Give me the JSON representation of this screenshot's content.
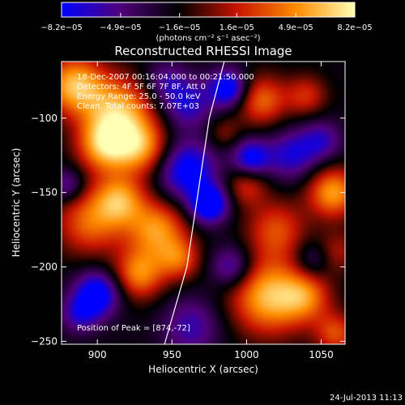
{
  "chart_data": {
    "type": "heatmap",
    "title": "Reconstructed RHESSI Image",
    "xlabel": "Heliocentric X (arcsec)",
    "ylabel": "Heliocentric Y (arcsec)",
    "xlim": [
      876,
      1066
    ],
    "ylim": [
      -252,
      -62
    ],
    "x_ticks": [
      900,
      950,
      1000,
      1050
    ],
    "y_ticks": [
      -250,
      -200,
      -150,
      -100
    ],
    "x_tick_labels": [
      "900",
      "950",
      "1000",
      "1050"
    ],
    "y_tick_labels": [
      "−250",
      "−200",
      "−150",
      "−100"
    ],
    "colorbar": {
      "min": -8.2e-05,
      "max": 8.2e-05,
      "tick_labels": [
        "−8.2e−05",
        "−4.9e−05",
        "−1.6e−05",
        "1.6e−05",
        "4.9e−05",
        "8.2e−05"
      ],
      "tick_values": [
        -8.2e-05,
        -4.9e-05,
        -1.6e-05,
        1.6e-05,
        4.9e-05,
        8.2e-05
      ],
      "unit_label": "(photons cm⁻² s⁻¹ asec⁻²)",
      "colormap": [
        "#0000ff",
        "#50007a",
        "#000000",
        "#c81400",
        "#ff8c00",
        "#ffffb4"
      ]
    },
    "annotations": [
      "18-Dec-2007 00:16:04.000 to 00:21:50.000",
      "Detectors: 4F 5F 6F 7F 8F, Att 0",
      "Energy Range: 25.0 - 50.0 keV",
      "Clean. Total counts: 7.07E+03"
    ],
    "peak_label": "Position of Peak = [874,-72]",
    "limb": [
      [
        945,
        -252
      ],
      [
        960,
        -200
      ],
      [
        975,
        -100
      ],
      [
        985,
        -62
      ]
    ],
    "blobs": [
      [
        885,
        -78,
        14,
        1.0
      ],
      [
        915,
        -95,
        16,
        0.9
      ],
      [
        905,
        -118,
        13,
        0.95
      ],
      [
        930,
        -120,
        13,
        0.8
      ],
      [
        895,
        -170,
        16,
        0.7
      ],
      [
        915,
        -155,
        12,
        0.8
      ],
      [
        940,
        -175,
        14,
        0.85
      ],
      [
        928,
        -205,
        12,
        0.8
      ],
      [
        955,
        -195,
        10,
        0.6
      ],
      [
        1015,
        -220,
        18,
        1.0
      ],
      [
        1040,
        -220,
        12,
        0.6
      ],
      [
        1058,
        -150,
        12,
        0.9
      ],
      [
        1020,
        -175,
        14,
        0.6
      ],
      [
        1000,
        -145,
        10,
        0.5
      ],
      [
        1010,
        -88,
        12,
        0.7
      ],
      [
        1040,
        -85,
        10,
        0.5
      ],
      [
        1060,
        -245,
        10,
        0.6
      ],
      [
        1060,
        -190,
        10,
        0.4
      ],
      [
        985,
        -110,
        8,
        0.3
      ],
      [
        960,
        -135,
        14,
        -0.85
      ],
      [
        975,
        -158,
        9,
        -1.0
      ],
      [
        988,
        -80,
        9,
        -0.9
      ],
      [
        1003,
        -127,
        9,
        -0.8
      ],
      [
        900,
        -218,
        11,
        -0.9
      ],
      [
        960,
        -90,
        12,
        -0.6
      ],
      [
        1030,
        -125,
        12,
        -0.6
      ],
      [
        1050,
        -115,
        10,
        -0.5
      ],
      [
        963,
        -240,
        14,
        -0.5
      ],
      [
        990,
        -200,
        10,
        -0.6
      ],
      [
        880,
        -145,
        8,
        -0.5
      ],
      [
        1045,
        -195,
        9,
        -0.4
      ],
      [
        945,
        -75,
        10,
        -0.4
      ],
      [
        888,
        -232,
        9,
        -0.5
      ]
    ]
  },
  "footer": {
    "date": "24-Jul-2013 11:13"
  }
}
